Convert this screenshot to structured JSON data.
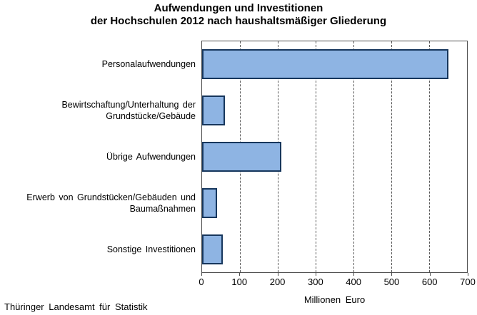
{
  "title": {
    "line1": "Aufwendungen und Investitionen",
    "line2": "der Hochschulen 2012 nach haushaltsmäßiger Gliederung"
  },
  "source": "Thüringer Landesamt für Statistik",
  "chart_data": {
    "type": "bar",
    "orientation": "horizontal",
    "title": "Aufwendungen und Investitionen der Hochschulen 2012 nach haushaltsmäßiger Gliederung",
    "categories": [
      "Personalaufwendungen",
      "Bewirtschaftung/Unterhaltung der\nGrundstücke/Gebäude",
      "Übrige Aufwendungen",
      "Erwerb von Grundstücken/Gebäuden und\nBaumaßnahmen",
      "Sonstige Investitionen"
    ],
    "values": [
      650,
      60,
      210,
      40,
      55
    ],
    "xlabel": "Millionen Euro",
    "ylabel": "",
    "xlim": [
      0,
      700
    ],
    "xticks": [
      0,
      100,
      200,
      300,
      400,
      500,
      600,
      700
    ],
    "grid": "vertical-dashed",
    "legend": "none",
    "colors": {
      "bar_fill": "#8EB4E3",
      "bar_border": "#16365C",
      "gridline": "#595959",
      "axis_border": "#4D4D4D"
    }
  }
}
